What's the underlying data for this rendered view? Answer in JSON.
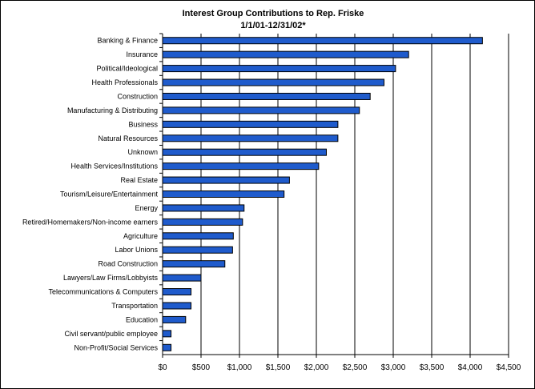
{
  "chart_data": {
    "type": "bar",
    "orientation": "horizontal",
    "title": "Interest Group Contributions to Rep. Friske",
    "subtitle": "1/1/01-12/31/02*",
    "xlabel": "",
    "ylabel": "",
    "xlim": [
      0,
      4500
    ],
    "ticks": [
      0,
      500,
      1000,
      1500,
      2000,
      2500,
      3000,
      3500,
      4000,
      4500
    ],
    "tick_labels": [
      "$0",
      "$500",
      "$1,000",
      "$1,500",
      "$2,000",
      "$2,500",
      "$3,000",
      "$3,500",
      "$4,000",
      "$4,500"
    ],
    "grid": "vertical",
    "legend": "none",
    "bar_color": "#1f5bcc",
    "categories": [
      "Banking & Finance",
      "Insurance",
      "Political/Ideological",
      "Health Professionals",
      "Construction",
      "Manufacturing & Distributing",
      "Business",
      "Natural Resources",
      "Unknown",
      "Health Services/Institutions",
      "Real Estate",
      "Tourism/Leisure/Entertainment",
      "Energy",
      "Retired/Homemakers/Non-income earners",
      "Agriculture",
      "Labor Unions",
      "Road Construction",
      "Lawyers/Law Firms/Lobbyists",
      "Telecommunications & Computers",
      "Transportation",
      "Education",
      "Civil servant/public employee",
      "Non-Profit/Social Services"
    ],
    "values": [
      4160,
      3200,
      3030,
      2880,
      2700,
      2560,
      2280,
      2280,
      2130,
      2030,
      1650,
      1580,
      1060,
      1040,
      920,
      910,
      810,
      500,
      370,
      370,
      300,
      110,
      110
    ]
  }
}
